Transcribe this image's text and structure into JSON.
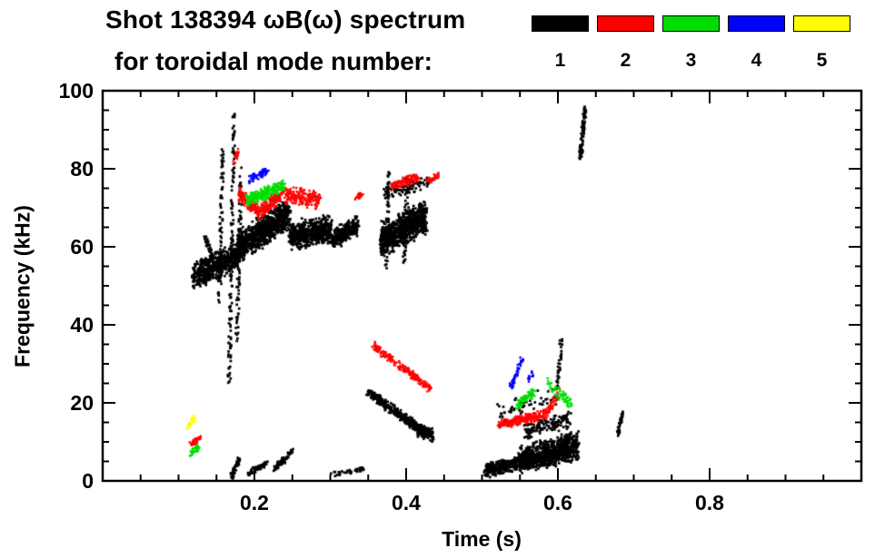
{
  "title": {
    "line1": "Shot 138394 ωB(ω) spectrum",
    "line2": "for toroidal mode number:"
  },
  "legend": {
    "items": [
      {
        "label": "1",
        "color": "#000000"
      },
      {
        "label": "2",
        "color": "#ff0000"
      },
      {
        "label": "3",
        "color": "#00dd00"
      },
      {
        "label": "4",
        "color": "#0000ff"
      },
      {
        "label": "5",
        "color": "#ffff00"
      }
    ]
  },
  "chart_data": {
    "type": "scatter",
    "title": "Shot 138394 ωB(ω) spectrum for toroidal mode number",
    "xlabel": "Time (s)",
    "ylabel": "Frequency (kHz)",
    "xlim": [
      0.0,
      1.0
    ],
    "ylim": [
      0,
      100
    ],
    "xticks": [
      0.2,
      0.4,
      0.6,
      0.8
    ],
    "yticks": [
      0,
      20,
      40,
      60,
      80,
      100
    ],
    "x_minor_step": 0.05,
    "y_minor_step": 5,
    "grid": false,
    "legend_position": "top-right",
    "band_fields": [
      "t_start_s",
      "t_end_s",
      "freq_start_kHz",
      "freq_end_kHz",
      "freq_jitter_kHz",
      "n_points"
    ],
    "series": [
      {
        "name": "toroidal mode n=1",
        "label": "1",
        "color": "#000000",
        "bands": [
          [
            0.118,
            0.178,
            53,
            58,
            4,
            550
          ],
          [
            0.152,
            0.157,
            45,
            85,
            1.2,
            70
          ],
          [
            0.165,
            0.172,
            25,
            96,
            1.5,
            130
          ],
          [
            0.175,
            0.181,
            35,
            80,
            1.5,
            80
          ],
          [
            0.175,
            0.245,
            60,
            69,
            4.5,
            850
          ],
          [
            0.245,
            0.3,
            63,
            65,
            4,
            520
          ],
          [
            0.3,
            0.335,
            62,
            66,
            3,
            260
          ],
          [
            0.133,
            0.147,
            63,
            55,
            1,
            55
          ],
          [
            0.365,
            0.425,
            62,
            68,
            5,
            750
          ],
          [
            0.372,
            0.376,
            55,
            80,
            1,
            55
          ],
          [
            0.395,
            0.4,
            55,
            78,
            1,
            55
          ],
          [
            0.37,
            0.43,
            74,
            77,
            2,
            90
          ],
          [
            0.348,
            0.425,
            23,
            12.5,
            1.5,
            330
          ],
          [
            0.413,
            0.433,
            13.5,
            12,
            2,
            130
          ],
          [
            0.503,
            0.56,
            3,
            5.5,
            2,
            320
          ],
          [
            0.548,
            0.625,
            5.5,
            9.5,
            4,
            850
          ],
          [
            0.555,
            0.615,
            13,
            16,
            2.5,
            140
          ],
          [
            0.52,
            0.6,
            18,
            22,
            3,
            60
          ],
          [
            0.598,
            0.603,
            24,
            37,
            1,
            35
          ],
          [
            0.628,
            0.634,
            83,
            96,
            1,
            85
          ],
          [
            0.678,
            0.683,
            12,
            18,
            0.8,
            28
          ],
          [
            0.168,
            0.178,
            1,
            6,
            1,
            45
          ],
          [
            0.19,
            0.215,
            2,
            5,
            1,
            55
          ],
          [
            0.225,
            0.248,
            3.5,
            8,
            1,
            65
          ],
          [
            0.3,
            0.345,
            2,
            3.5,
            0.8,
            40
          ]
        ]
      },
      {
        "name": "toroidal mode n=2",
        "label": "2",
        "color": "#ff0000",
        "bands": [
          [
            0.178,
            0.205,
            74,
            69,
            2,
            150
          ],
          [
            0.205,
            0.235,
            69,
            74,
            2,
            160
          ],
          [
            0.235,
            0.285,
            74,
            72,
            2.5,
            210
          ],
          [
            0.38,
            0.415,
            76,
            78,
            1.5,
            110
          ],
          [
            0.425,
            0.442,
            77,
            78.5,
            1,
            40
          ],
          [
            0.355,
            0.43,
            35,
            24,
            1.2,
            210
          ],
          [
            0.52,
            0.585,
            14.5,
            17.5,
            1.5,
            240
          ],
          [
            0.585,
            0.6,
            18,
            23,
            1.5,
            40
          ],
          [
            0.333,
            0.34,
            72.5,
            74,
            0.8,
            25
          ],
          [
            0.113,
            0.128,
            9.5,
            11.5,
            1,
            40
          ],
          [
            0.172,
            0.178,
            82,
            85,
            1,
            18
          ]
        ]
      },
      {
        "name": "toroidal mode n=3",
        "label": "3",
        "color": "#00dd00",
        "bands": [
          [
            0.188,
            0.238,
            72,
            76,
            1.8,
            240
          ],
          [
            0.113,
            0.126,
            7,
            9,
            1,
            35
          ],
          [
            0.545,
            0.568,
            20,
            23,
            1.5,
            65
          ],
          [
            0.585,
            0.617,
            25,
            20,
            1.8,
            65
          ]
        ]
      },
      {
        "name": "toroidal mode n=4",
        "label": "4",
        "color": "#0000ff",
        "bands": [
          [
            0.193,
            0.216,
            77.5,
            80,
            1.2,
            65
          ],
          [
            0.536,
            0.552,
            24,
            32,
            1.2,
            55
          ],
          [
            0.558,
            0.565,
            26,
            28,
            0.8,
            15
          ]
        ]
      },
      {
        "name": "toroidal mode n=5",
        "label": "5",
        "color": "#ffff00",
        "bands": [
          [
            0.111,
            0.119,
            14,
            16.5,
            1,
            32
          ]
        ]
      }
    ]
  }
}
